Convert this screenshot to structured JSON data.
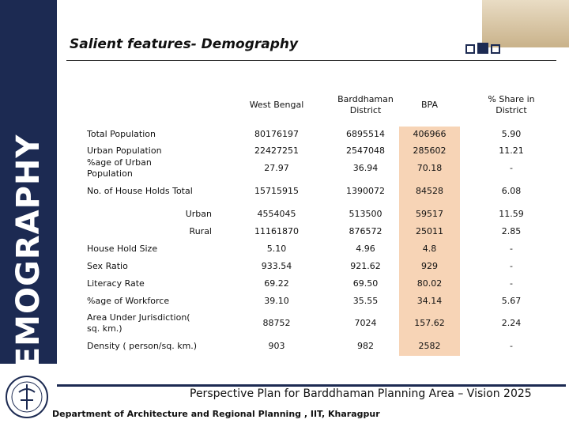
{
  "header": {
    "title": "Salient features- Demography"
  },
  "sidebar": {
    "label": "DEMOGRAPHY"
  },
  "table": {
    "columns": [
      "West Bengal",
      "Barddhaman District",
      "BPA",
      "% Share in District"
    ],
    "rows": [
      {
        "label": "Total Population",
        "cells": [
          "80176197",
          "6895514",
          "406966",
          "5.90"
        ]
      },
      {
        "label": "Urban Population",
        "cells": [
          "22427251",
          "2547048",
          "285602",
          "11.21"
        ]
      },
      {
        "label": "%age of Urban Population",
        "cells": [
          "27.97",
          "36.94",
          "70.18",
          "-"
        ]
      },
      {
        "label": "No. of House Holds Total",
        "cells": [
          "15715915",
          "1390072",
          "84528",
          "6.08"
        ]
      },
      {
        "label": "Urban",
        "cells": [
          "4554045",
          "513500",
          "59517",
          "11.59"
        ]
      },
      {
        "label": "Rural",
        "cells": [
          "11161870",
          "876572",
          "25011",
          "2.85"
        ]
      },
      {
        "label": "House Hold Size",
        "cells": [
          "5.10",
          "4.96",
          "4.8",
          "-"
        ]
      },
      {
        "label": "Sex Ratio",
        "cells": [
          "933.54",
          "921.62",
          "929",
          "-"
        ]
      },
      {
        "label": "Literacy Rate",
        "cells": [
          "69.22",
          "69.50",
          "80.02",
          "-"
        ]
      },
      {
        "label": "%age of Workforce",
        "cells": [
          "39.10",
          "35.55",
          "34.14",
          "5.67"
        ]
      },
      {
        "label": "Area Under Jurisdiction( sq. km.)",
        "cells": [
          "88752",
          "7024",
          "157.62",
          "2.24"
        ]
      },
      {
        "label": "Density ( person/sq. km.)",
        "cells": [
          "903",
          "982",
          "2582",
          "-"
        ]
      }
    ]
  },
  "footer": {
    "title": "Perspective Plan for Barddhaman Planning Area – Vision 2025",
    "department": "Department of Architecture and Regional Planning , IIT, Kharagpur"
  }
}
